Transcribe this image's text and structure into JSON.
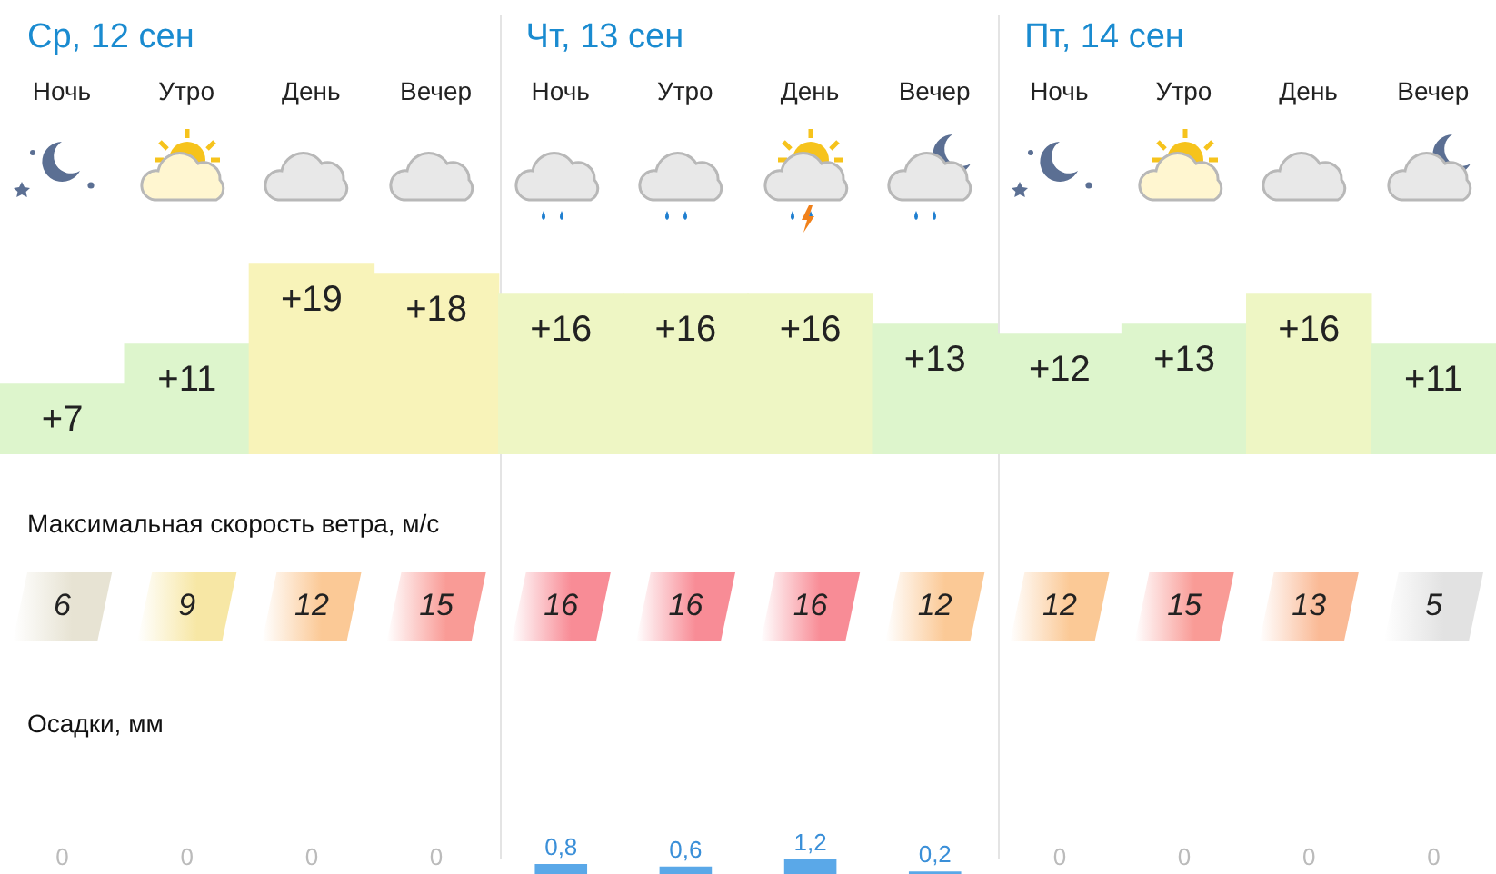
{
  "chart_data": [
    {
      "type": "bar",
      "categories": [
        "Ночь",
        "Утро",
        "День",
        "Вечер",
        "Ночь",
        "Утро",
        "День",
        "Вечер",
        "Ночь",
        "Утро",
        "День",
        "Вечер"
      ],
      "values": [
        7,
        11,
        19,
        18,
        16,
        16,
        16,
        13,
        12,
        13,
        16,
        11
      ],
      "value_labels": [
        "+7",
        "+11",
        "+19",
        "+18",
        "+16",
        "+16",
        "+16",
        "+13",
        "+12",
        "+13",
        "+16",
        "+11"
      ],
      "colors": [
        "#ddf5cc",
        "#ddf5cc",
        "#f8f3b9",
        "#f8f3b9",
        "#eef6c4",
        "#eef6c4",
        "#eef6c4",
        "#ddf5cc",
        "#ddf5cc",
        "#ddf5cc",
        "#eef6c4",
        "#ddf5cc"
      ],
      "tick_labels": false,
      "annotations": [
        "Ср, 12 сен",
        "Чт, 13 сен",
        "Пт, 14 сен"
      ]
    },
    {
      "type": "heatmap",
      "title": "Максимальная скорость ветра, м/с",
      "categories": [
        null,
        null,
        null,
        null,
        null,
        null,
        null,
        null,
        null,
        null,
        null,
        null
      ],
      "y_categories": [
        null
      ],
      "cells": [
        [
          6,
          9,
          12,
          15,
          16,
          16,
          16,
          12,
          12,
          15,
          13,
          5
        ]
      ],
      "cell_labels": [
        [
          "6",
          "9",
          "12",
          "15",
          "16",
          "16",
          "16",
          "12",
          "12",
          "15",
          "13",
          "5"
        ]
      ]
    },
    {
      "type": "bar",
      "title": "Осадки, мм",
      "categories": [
        null,
        null,
        null,
        null,
        null,
        null,
        null,
        null,
        null,
        null,
        null,
        null
      ],
      "values": [
        0,
        0,
        0,
        0,
        0.8,
        0.6,
        1.2,
        0.2,
        0,
        0,
        0,
        0
      ],
      "value_labels": [
        "0",
        "0",
        "0",
        "0",
        "0,8",
        "0,6",
        "1,2",
        "0,2",
        "0",
        "0",
        "0",
        "0"
      ],
      "color": "#5aa8e8",
      "tick_labels": false
    }
  ]
}
